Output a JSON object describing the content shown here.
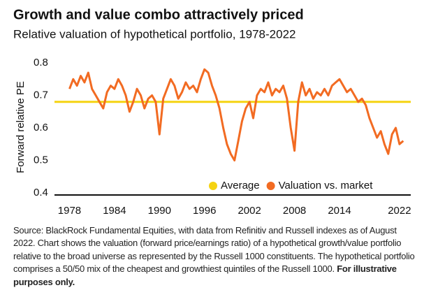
{
  "chart_data": {
    "type": "line",
    "title": "Growth and value combo attractively priced",
    "subtitle": "Relative valuation of hypothetical portfolio, 1978-2022",
    "y_label": "Forward relative PE",
    "xlim": [
      1976,
      2023.5
    ],
    "xticks": [
      1978,
      1984,
      1990,
      1996,
      2002,
      2008,
      2014,
      2022
    ],
    "ylim": [
      0.4,
      0.8
    ],
    "yticks": [
      0.4,
      0.5,
      0.6,
      0.7,
      0.8
    ],
    "average": {
      "name": "Average",
      "value": 0.68,
      "color": "#f5d312"
    },
    "series": [
      {
        "name": "Valuation vs. market",
        "color": "#f26b22",
        "x": [
          1978,
          1978.5,
          1979,
          1979.5,
          1980,
          1980.5,
          1981,
          1981.5,
          1982,
          1982.5,
          1983,
          1983.5,
          1984,
          1984.5,
          1985,
          1985.5,
          1986,
          1986.5,
          1987,
          1987.5,
          1988,
          1988.5,
          1989,
          1989.5,
          1990,
          1990.5,
          1991,
          1991.5,
          1992,
          1992.5,
          1993,
          1993.5,
          1994,
          1994.5,
          1995,
          1995.5,
          1996,
          1996.5,
          1997,
          1997.5,
          1998,
          1998.5,
          1999,
          1999.5,
          2000,
          2000.5,
          2001,
          2001.5,
          2002,
          2002.5,
          2003,
          2003.5,
          2004,
          2004.5,
          2005,
          2005.5,
          2006,
          2006.5,
          2007,
          2007.5,
          2008,
          2008.5,
          2009,
          2009.5,
          2010,
          2010.5,
          2011,
          2011.5,
          2012,
          2012.5,
          2013,
          2013.5,
          2014,
          2014.5,
          2015,
          2015.5,
          2016,
          2016.5,
          2017,
          2017.5,
          2018,
          2018.5,
          2019,
          2019.5,
          2020,
          2020.5,
          2021,
          2021.5,
          2022,
          2022.5
        ],
        "values": [
          0.72,
          0.75,
          0.73,
          0.76,
          0.74,
          0.77,
          0.72,
          0.7,
          0.68,
          0.66,
          0.71,
          0.73,
          0.72,
          0.75,
          0.73,
          0.7,
          0.65,
          0.68,
          0.72,
          0.7,
          0.66,
          0.69,
          0.7,
          0.68,
          0.58,
          0.69,
          0.72,
          0.75,
          0.73,
          0.69,
          0.71,
          0.74,
          0.72,
          0.73,
          0.71,
          0.75,
          0.78,
          0.77,
          0.73,
          0.7,
          0.66,
          0.6,
          0.55,
          0.52,
          0.5,
          0.56,
          0.62,
          0.66,
          0.68,
          0.63,
          0.7,
          0.72,
          0.71,
          0.74,
          0.7,
          0.72,
          0.71,
          0.73,
          0.69,
          0.6,
          0.53,
          0.68,
          0.74,
          0.7,
          0.72,
          0.69,
          0.71,
          0.7,
          0.72,
          0.7,
          0.73,
          0.74,
          0.75,
          0.73,
          0.71,
          0.72,
          0.7,
          0.68,
          0.69,
          0.67,
          0.63,
          0.6,
          0.57,
          0.59,
          0.55,
          0.52,
          0.58,
          0.6,
          0.55,
          0.56
        ]
      }
    ],
    "source": "Source: BlackRock Fundamental Equities, with data from Refinitiv and Russell indexes as of August 2022. Chart shows the valuation (forward price/earnings ratio) of a hypothetical growth/value portfolio relative to the broad universe as represented by the Russell 1000 constituents. The hypothetical portfolio comprises a 50/50 mix of the cheapest and growthiest quintiles of the Russell 1000.",
    "source_bold": "For illustrative purposes only."
  }
}
